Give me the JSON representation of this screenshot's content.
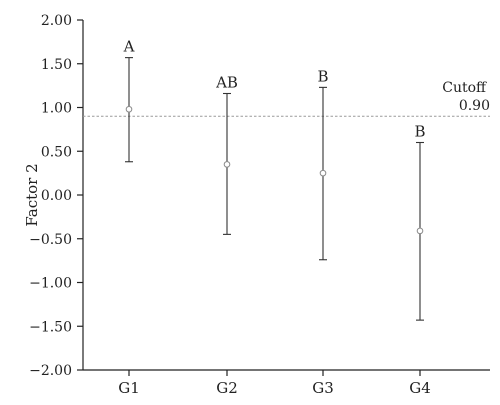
{
  "chart_data": {
    "type": "errorbar",
    "ylabel": "Factor 2",
    "xlabel": "",
    "ylim": [
      -2.0,
      2.0
    ],
    "yticks": [
      "2.00",
      "1.50",
      "1.00",
      "0.50",
      "0.00",
      "-0.50",
      "-1.00",
      "-1.50",
      "-2.00"
    ],
    "yticks_values": [
      2.0,
      1.5,
      1.0,
      0.5,
      0.0,
      -0.5,
      -1.0,
      -1.5,
      -2.0
    ],
    "categories": [
      "G1",
      "G2",
      "G3",
      "G4"
    ],
    "means": [
      0.98,
      0.35,
      0.25,
      -0.41
    ],
    "lower": [
      0.38,
      -0.45,
      -0.74,
      -1.43
    ],
    "upper": [
      1.57,
      1.16,
      1.23,
      0.6
    ],
    "group_letters": [
      "A",
      "AB",
      "B",
      "B"
    ],
    "cutoff": {
      "value": 0.9,
      "label": "Cutoff",
      "value_label": "0.90"
    },
    "grid": false,
    "colors": {
      "axis": "#222222",
      "errorbar": "#333333",
      "marker": "#8a8a8a",
      "cutoff_line": "#9a9a9a"
    }
  }
}
